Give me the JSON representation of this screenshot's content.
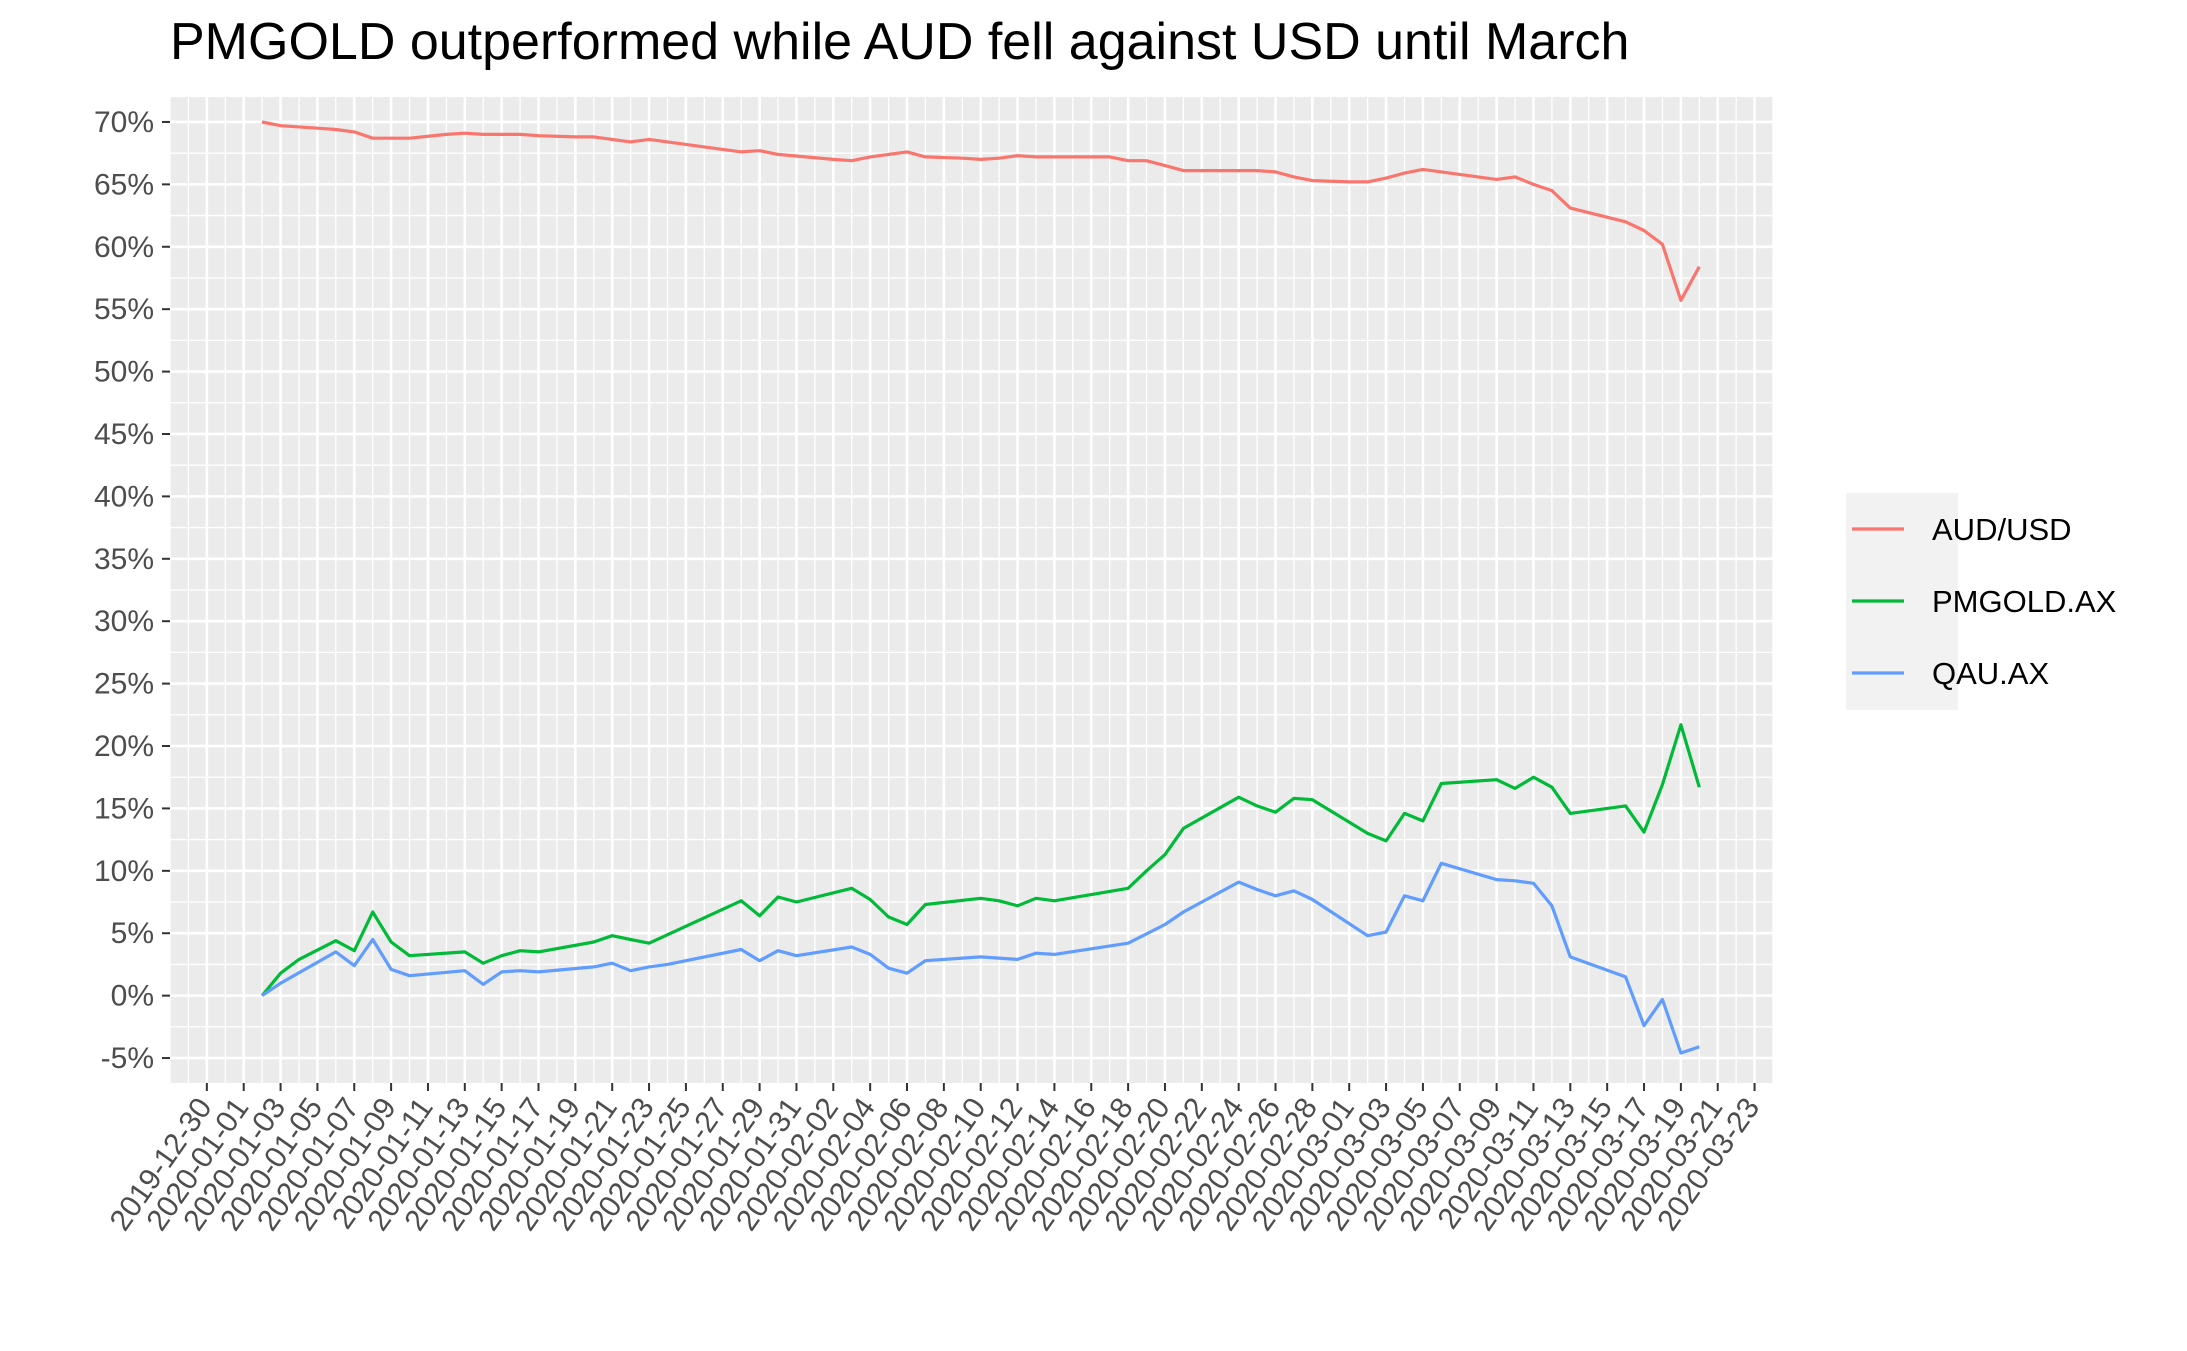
{
  "chart_data": {
    "type": "line",
    "title": "PMGOLD outperformed while AUD fell against USD until March",
    "xlabel": "",
    "ylabel": "",
    "ylim": [
      -7,
      72
    ],
    "xlim": [
      "2019-12-28",
      "2020-03-24"
    ],
    "y_ticks": [
      -5,
      0,
      5,
      10,
      15,
      20,
      25,
      30,
      35,
      40,
      45,
      50,
      55,
      60,
      65,
      70
    ],
    "y_tick_labels": [
      "-5%",
      "0%",
      "5%",
      "10%",
      "15%",
      "20%",
      "25%",
      "30%",
      "35%",
      "40%",
      "45%",
      "50%",
      "55%",
      "60%",
      "65%",
      "70%"
    ],
    "x_tick_labels": [
      "2019-12-30",
      "2020-01-01",
      "2020-01-03",
      "2020-01-05",
      "2020-01-07",
      "2020-01-09",
      "2020-01-11",
      "2020-01-13",
      "2020-01-15",
      "2020-01-17",
      "2020-01-19",
      "2020-01-21",
      "2020-01-23",
      "2020-01-25",
      "2020-01-27",
      "2020-01-29",
      "2020-01-31",
      "2020-02-02",
      "2020-02-04",
      "2020-02-06",
      "2020-02-08",
      "2020-02-10",
      "2020-02-12",
      "2020-02-14",
      "2020-02-16",
      "2020-02-18",
      "2020-02-20",
      "2020-02-22",
      "2020-02-24",
      "2020-02-26",
      "2020-02-28",
      "2020-03-01",
      "2020-03-03",
      "2020-03-05",
      "2020-03-07",
      "2020-03-09",
      "2020-03-11",
      "2020-03-13",
      "2020-03-15",
      "2020-03-17",
      "2020-03-19",
      "2020-03-21",
      "2020-03-23"
    ],
    "grid": true,
    "legend_position": "right",
    "series": [
      {
        "name": "AUD/USD",
        "color": "#F8766D",
        "points": [
          [
            "2020-01-02",
            70.0
          ],
          [
            "2020-01-03",
            69.7
          ],
          [
            "2020-01-05",
            69.5
          ],
          [
            "2020-01-06",
            69.4
          ],
          [
            "2020-01-07",
            69.2
          ],
          [
            "2020-01-08",
            68.7
          ],
          [
            "2020-01-09",
            68.7
          ],
          [
            "2020-01-10",
            68.7
          ],
          [
            "2020-01-12",
            69.0
          ],
          [
            "2020-01-13",
            69.1
          ],
          [
            "2020-01-14",
            69.0
          ],
          [
            "2020-01-15",
            69.0
          ],
          [
            "2020-01-16",
            69.0
          ],
          [
            "2020-01-17",
            68.9
          ],
          [
            "2020-01-19",
            68.8
          ],
          [
            "2020-01-20",
            68.8
          ],
          [
            "2020-01-21",
            68.6
          ],
          [
            "2020-01-22",
            68.4
          ],
          [
            "2020-01-23",
            68.6
          ],
          [
            "2020-01-24",
            68.4
          ],
          [
            "2020-01-26",
            68.0
          ],
          [
            "2020-01-27",
            67.8
          ],
          [
            "2020-01-28",
            67.6
          ],
          [
            "2020-01-29",
            67.7
          ],
          [
            "2020-01-30",
            67.4
          ],
          [
            "2020-02-02",
            67.0
          ],
          [
            "2020-02-03",
            66.9
          ],
          [
            "2020-02-04",
            67.2
          ],
          [
            "2020-02-05",
            67.4
          ],
          [
            "2020-02-06",
            67.6
          ],
          [
            "2020-02-07",
            67.2
          ],
          [
            "2020-02-09",
            67.1
          ],
          [
            "2020-02-10",
            67.0
          ],
          [
            "2020-02-11",
            67.1
          ],
          [
            "2020-02-12",
            67.3
          ],
          [
            "2020-02-13",
            67.2
          ],
          [
            "2020-02-16",
            67.2
          ],
          [
            "2020-02-17",
            67.2
          ],
          [
            "2020-02-18",
            66.9
          ],
          [
            "2020-02-19",
            66.9
          ],
          [
            "2020-02-20",
            66.5
          ],
          [
            "2020-02-21",
            66.1
          ],
          [
            "2020-02-24",
            66.1
          ],
          [
            "2020-02-25",
            66.1
          ],
          [
            "2020-02-26",
            66.0
          ],
          [
            "2020-02-27",
            65.6
          ],
          [
            "2020-02-28",
            65.3
          ],
          [
            "2020-03-01",
            65.2
          ],
          [
            "2020-03-02",
            65.2
          ],
          [
            "2020-03-03",
            65.5
          ],
          [
            "2020-03-04",
            65.9
          ],
          [
            "2020-03-05",
            66.2
          ],
          [
            "2020-03-09",
            65.4
          ],
          [
            "2020-03-10",
            65.6
          ],
          [
            "2020-03-11",
            65.0
          ],
          [
            "2020-03-12",
            64.5
          ],
          [
            "2020-03-13",
            63.1
          ],
          [
            "2020-03-16",
            62.0
          ],
          [
            "2020-03-17",
            61.3
          ],
          [
            "2020-03-18",
            60.2
          ],
          [
            "2020-03-19",
            55.7
          ],
          [
            "2020-03-20",
            58.4
          ]
        ]
      },
      {
        "name": "PMGOLD.AX",
        "color": "#00BA38",
        "points": [
          [
            "2020-01-02",
            0.0
          ],
          [
            "2020-01-03",
            1.8
          ],
          [
            "2020-01-04",
            2.9
          ],
          [
            "2020-01-06",
            4.4
          ],
          [
            "2020-01-07",
            3.6
          ],
          [
            "2020-01-08",
            6.7
          ],
          [
            "2020-01-09",
            4.3
          ],
          [
            "2020-01-10",
            3.2
          ],
          [
            "2020-01-13",
            3.5
          ],
          [
            "2020-01-14",
            2.6
          ],
          [
            "2020-01-15",
            3.2
          ],
          [
            "2020-01-16",
            3.6
          ],
          [
            "2020-01-17",
            3.5
          ],
          [
            "2020-01-20",
            4.3
          ],
          [
            "2020-01-21",
            4.8
          ],
          [
            "2020-01-22",
            4.5
          ],
          [
            "2020-01-23",
            4.2
          ],
          [
            "2020-01-28",
            7.6
          ],
          [
            "2020-01-29",
            6.4
          ],
          [
            "2020-01-30",
            7.9
          ],
          [
            "2020-01-31",
            7.5
          ],
          [
            "2020-02-03",
            8.6
          ],
          [
            "2020-02-04",
            7.7
          ],
          [
            "2020-02-05",
            6.3
          ],
          [
            "2020-02-06",
            5.7
          ],
          [
            "2020-02-07",
            7.3
          ],
          [
            "2020-02-10",
            7.8
          ],
          [
            "2020-02-11",
            7.6
          ],
          [
            "2020-02-12",
            7.2
          ],
          [
            "2020-02-13",
            7.8
          ],
          [
            "2020-02-14",
            7.6
          ],
          [
            "2020-02-18",
            8.6
          ],
          [
            "2020-02-19",
            10.0
          ],
          [
            "2020-02-20",
            11.3
          ],
          [
            "2020-02-21",
            13.4
          ],
          [
            "2020-02-24",
            15.9
          ],
          [
            "2020-02-25",
            15.2
          ],
          [
            "2020-02-26",
            14.7
          ],
          [
            "2020-02-27",
            15.8
          ],
          [
            "2020-02-28",
            15.7
          ],
          [
            "2020-03-02",
            13.0
          ],
          [
            "2020-03-03",
            12.4
          ],
          [
            "2020-03-04",
            14.6
          ],
          [
            "2020-03-05",
            14.0
          ],
          [
            "2020-03-06",
            17.0
          ],
          [
            "2020-03-09",
            17.3
          ],
          [
            "2020-03-10",
            16.6
          ],
          [
            "2020-03-11",
            17.5
          ],
          [
            "2020-03-12",
            16.7
          ],
          [
            "2020-03-13",
            14.6
          ],
          [
            "2020-03-16",
            15.2
          ],
          [
            "2020-03-17",
            13.1
          ],
          [
            "2020-03-18",
            16.9
          ],
          [
            "2020-03-19",
            21.7
          ],
          [
            "2020-03-20",
            16.7
          ]
        ]
      },
      {
        "name": "QAU.AX",
        "color": "#619CFF",
        "points": [
          [
            "2020-01-02",
            0.0
          ],
          [
            "2020-01-03",
            1.0
          ],
          [
            "2020-01-06",
            3.5
          ],
          [
            "2020-01-07",
            2.4
          ],
          [
            "2020-01-08",
            4.5
          ],
          [
            "2020-01-09",
            2.1
          ],
          [
            "2020-01-10",
            1.6
          ],
          [
            "2020-01-13",
            2.0
          ],
          [
            "2020-01-14",
            0.9
          ],
          [
            "2020-01-15",
            1.9
          ],
          [
            "2020-01-16",
            2.0
          ],
          [
            "2020-01-17",
            1.9
          ],
          [
            "2020-01-20",
            2.3
          ],
          [
            "2020-01-21",
            2.6
          ],
          [
            "2020-01-22",
            2.0
          ],
          [
            "2020-01-23",
            2.3
          ],
          [
            "2020-01-24",
            2.5
          ],
          [
            "2020-01-28",
            3.7
          ],
          [
            "2020-01-29",
            2.8
          ],
          [
            "2020-01-30",
            3.6
          ],
          [
            "2020-01-31",
            3.2
          ],
          [
            "2020-02-03",
            3.9
          ],
          [
            "2020-02-04",
            3.3
          ],
          [
            "2020-02-05",
            2.2
          ],
          [
            "2020-02-06",
            1.8
          ],
          [
            "2020-02-07",
            2.8
          ],
          [
            "2020-02-10",
            3.1
          ],
          [
            "2020-02-12",
            2.9
          ],
          [
            "2020-02-13",
            3.4
          ],
          [
            "2020-02-14",
            3.3
          ],
          [
            "2020-02-18",
            4.2
          ],
          [
            "2020-02-20",
            5.7
          ],
          [
            "2020-02-21",
            6.7
          ],
          [
            "2020-02-24",
            9.1
          ],
          [
            "2020-02-25",
            8.5
          ],
          [
            "2020-02-26",
            8.0
          ],
          [
            "2020-02-27",
            8.4
          ],
          [
            "2020-02-28",
            7.7
          ],
          [
            "2020-03-02",
            4.8
          ],
          [
            "2020-03-03",
            5.1
          ],
          [
            "2020-03-04",
            8.0
          ],
          [
            "2020-03-05",
            7.6
          ],
          [
            "2020-03-06",
            10.6
          ],
          [
            "2020-03-09",
            9.3
          ],
          [
            "2020-03-10",
            9.2
          ],
          [
            "2020-03-11",
            9.0
          ],
          [
            "2020-03-12",
            7.2
          ],
          [
            "2020-03-13",
            3.1
          ],
          [
            "2020-03-16",
            1.5
          ],
          [
            "2020-03-17",
            -2.4
          ],
          [
            "2020-03-18",
            -0.3
          ],
          [
            "2020-03-19",
            -4.6
          ],
          [
            "2020-03-20",
            -4.1
          ]
        ]
      }
    ]
  }
}
